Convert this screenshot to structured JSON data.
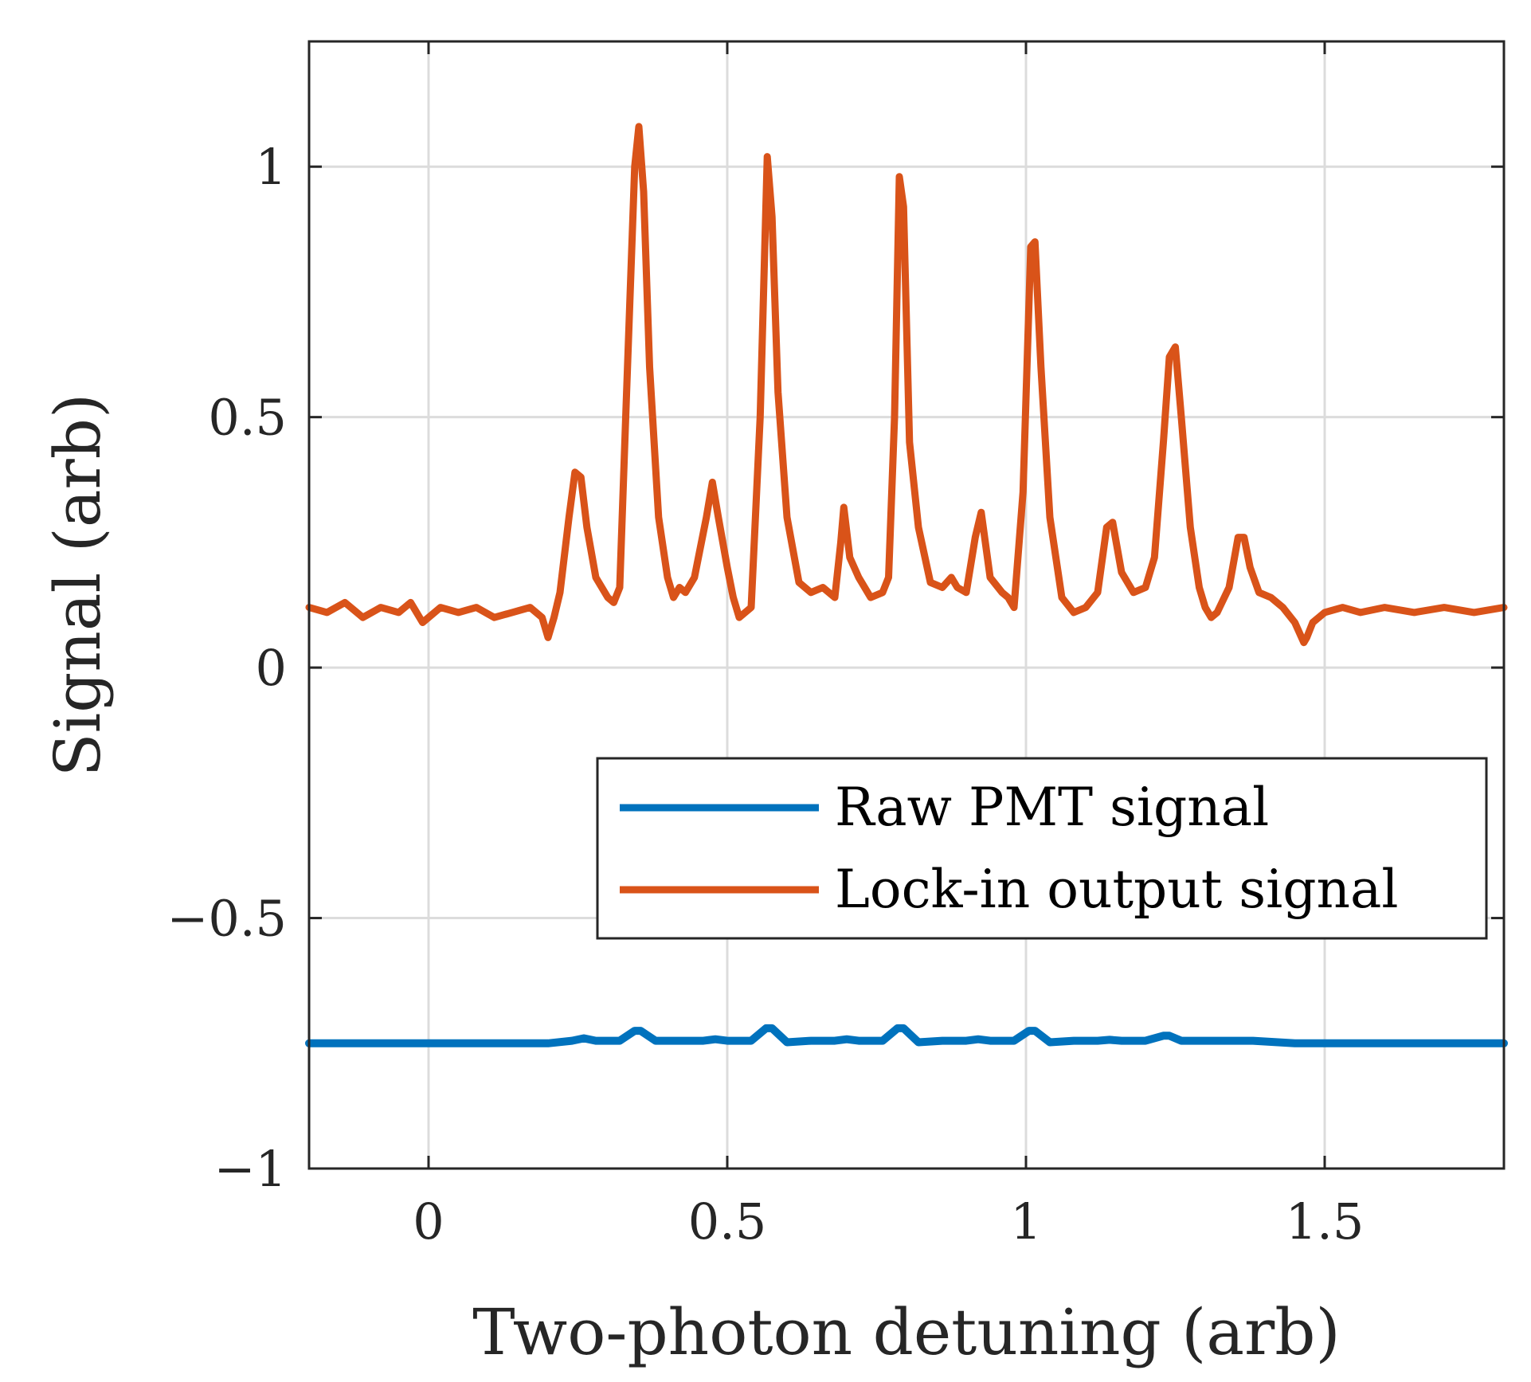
{
  "chart_data": {
    "type": "line",
    "xlabel": "Two-photon detuning (arb)",
    "ylabel": "Signal (arb)",
    "xlim": [
      -0.2,
      1.8
    ],
    "ylim": [
      -1,
      1.25
    ],
    "grid": true,
    "legend_position": "lower-right",
    "x_ticks": [
      0,
      0.5,
      1,
      1.5
    ],
    "x_tick_labels": [
      "0",
      "0.5",
      "1",
      "1.5"
    ],
    "y_ticks": [
      -1,
      -0.5,
      0,
      0.5,
      1
    ],
    "y_tick_labels": [
      "−1",
      "−0.5",
      "0",
      "0.5",
      "1"
    ],
    "series": [
      {
        "name": "Raw PMT signal",
        "color": "#0072BD",
        "x": [
          -0.2,
          0.2,
          0.24,
          0.26,
          0.28,
          0.32,
          0.345,
          0.355,
          0.38,
          0.42,
          0.46,
          0.48,
          0.5,
          0.54,
          0.565,
          0.575,
          0.6,
          0.64,
          0.68,
          0.7,
          0.72,
          0.76,
          0.785,
          0.795,
          0.82,
          0.86,
          0.9,
          0.92,
          0.94,
          0.98,
          1.005,
          1.015,
          1.04,
          1.08,
          1.12,
          1.14,
          1.16,
          1.2,
          1.23,
          1.24,
          1.26,
          1.3,
          1.34,
          1.36,
          1.38,
          1.45,
          1.8
        ],
        "values": [
          -0.75,
          -0.75,
          -0.745,
          -0.74,
          -0.745,
          -0.745,
          -0.725,
          -0.725,
          -0.745,
          -0.745,
          -0.745,
          -0.742,
          -0.745,
          -0.745,
          -0.72,
          -0.72,
          -0.748,
          -0.745,
          -0.745,
          -0.742,
          -0.745,
          -0.745,
          -0.72,
          -0.72,
          -0.748,
          -0.745,
          -0.745,
          -0.742,
          -0.745,
          -0.745,
          -0.725,
          -0.725,
          -0.748,
          -0.745,
          -0.745,
          -0.743,
          -0.745,
          -0.745,
          -0.735,
          -0.735,
          -0.745,
          -0.745,
          -0.745,
          -0.745,
          -0.745,
          -0.75,
          -0.75
        ]
      },
      {
        "name": "Lock-in output signal",
        "color": "#D95319",
        "x": [
          -0.2,
          -0.17,
          -0.14,
          -0.11,
          -0.08,
          -0.05,
          -0.03,
          -0.01,
          0.02,
          0.05,
          0.08,
          0.11,
          0.14,
          0.17,
          0.19,
          0.2,
          0.21,
          0.22,
          0.235,
          0.245,
          0.255,
          0.265,
          0.28,
          0.3,
          0.31,
          0.32,
          0.33,
          0.345,
          0.352,
          0.36,
          0.37,
          0.385,
          0.4,
          0.41,
          0.42,
          0.43,
          0.445,
          0.465,
          0.475,
          0.485,
          0.5,
          0.51,
          0.52,
          0.54,
          0.555,
          0.567,
          0.575,
          0.585,
          0.6,
          0.62,
          0.64,
          0.66,
          0.68,
          0.69,
          0.695,
          0.705,
          0.72,
          0.74,
          0.76,
          0.77,
          0.78,
          0.788,
          0.795,
          0.805,
          0.82,
          0.84,
          0.86,
          0.875,
          0.885,
          0.9,
          0.915,
          0.925,
          0.94,
          0.96,
          0.97,
          0.98,
          0.995,
          1.008,
          1.015,
          1.025,
          1.04,
          1.06,
          1.08,
          1.1,
          1.12,
          1.135,
          1.145,
          1.16,
          1.18,
          1.2,
          1.215,
          1.23,
          1.24,
          1.25,
          1.26,
          1.275,
          1.29,
          1.3,
          1.31,
          1.32,
          1.34,
          1.355,
          1.365,
          1.375,
          1.39,
          1.41,
          1.43,
          1.45,
          1.465,
          1.47,
          1.48,
          1.5,
          1.53,
          1.56,
          1.6,
          1.65,
          1.7,
          1.75,
          1.8
        ],
        "values": [
          0.12,
          0.11,
          0.13,
          0.1,
          0.12,
          0.11,
          0.13,
          0.09,
          0.12,
          0.11,
          0.12,
          0.1,
          0.11,
          0.12,
          0.1,
          0.06,
          0.1,
          0.15,
          0.3,
          0.39,
          0.38,
          0.28,
          0.18,
          0.14,
          0.13,
          0.16,
          0.5,
          1.0,
          1.08,
          0.95,
          0.6,
          0.3,
          0.18,
          0.14,
          0.16,
          0.15,
          0.18,
          0.3,
          0.37,
          0.3,
          0.2,
          0.14,
          0.1,
          0.12,
          0.5,
          1.02,
          0.9,
          0.55,
          0.3,
          0.17,
          0.15,
          0.16,
          0.14,
          0.25,
          0.32,
          0.22,
          0.18,
          0.14,
          0.15,
          0.18,
          0.5,
          0.98,
          0.92,
          0.45,
          0.28,
          0.17,
          0.16,
          0.18,
          0.16,
          0.15,
          0.26,
          0.31,
          0.18,
          0.15,
          0.14,
          0.12,
          0.35,
          0.84,
          0.85,
          0.6,
          0.3,
          0.14,
          0.11,
          0.12,
          0.15,
          0.28,
          0.29,
          0.19,
          0.15,
          0.16,
          0.22,
          0.45,
          0.62,
          0.64,
          0.5,
          0.28,
          0.16,
          0.12,
          0.1,
          0.11,
          0.16,
          0.26,
          0.26,
          0.2,
          0.15,
          0.14,
          0.12,
          0.09,
          0.05,
          0.06,
          0.09,
          0.11,
          0.12,
          0.11,
          0.12,
          0.11,
          0.12,
          0.11,
          0.12
        ]
      }
    ]
  }
}
